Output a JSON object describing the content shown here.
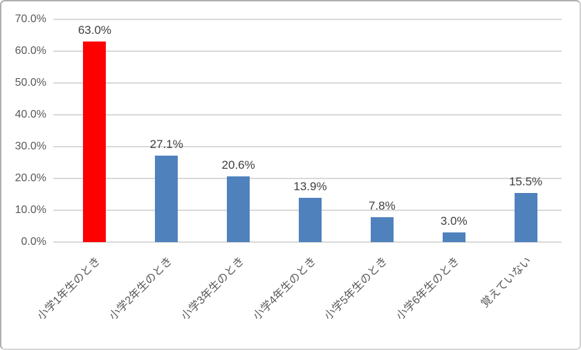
{
  "chart_data": {
    "type": "bar",
    "title": "",
    "xlabel": "",
    "ylabel": "",
    "categories": [
      "小学1年生のとき",
      "小学2年生のとき",
      "小学3年生のとき",
      "小学4年生のとき",
      "小学5年生のとき",
      "小学6年生のとき",
      "覚えていない"
    ],
    "values": [
      63.0,
      27.1,
      20.6,
      13.9,
      7.8,
      3.0,
      15.5
    ],
    "data_labels": [
      "63.0%",
      "27.1%",
      "20.6%",
      "13.9%",
      "7.8%",
      "3.0%",
      "15.5%"
    ],
    "bar_colors": [
      "#ff0000",
      "#4f81bd",
      "#4f81bd",
      "#4f81bd",
      "#4f81bd",
      "#4f81bd",
      "#4f81bd"
    ],
    "ylim": [
      0,
      70
    ],
    "ytick_step": 10,
    "ytick_labels": [
      "0.0%",
      "10.0%",
      "20.0%",
      "30.0%",
      "40.0%",
      "50.0%",
      "60.0%",
      "70.0%"
    ],
    "grid": true,
    "legend": false
  },
  "colors": {
    "highlight_bar": "#ff0000",
    "default_bar": "#4f81bd",
    "gridline": "#d9d9d9",
    "tick_text": "#595959",
    "value_label_text": "#404040",
    "category_label_text": "#595959",
    "background": "#ffffff",
    "frame_border": "#aeaeae"
  }
}
